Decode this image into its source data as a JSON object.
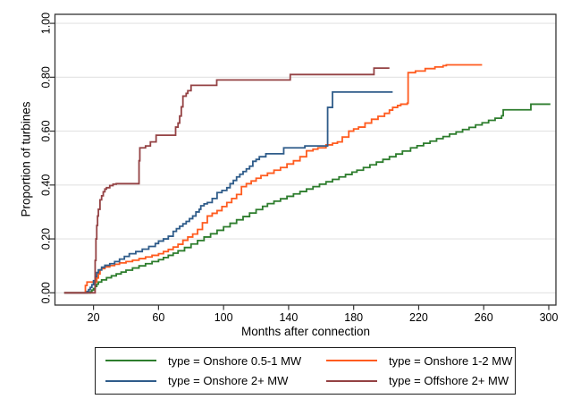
{
  "figure": {
    "background": "#ffffff",
    "plot_border_color": "#333333",
    "gridline_color": "#e3e3e3",
    "tick_color": "#333333",
    "text_color": "#000000"
  },
  "chart_data": {
    "type": "line",
    "step": true,
    "title": "",
    "xlabel": "Months after connection",
    "ylabel": "Proportion of turbines",
    "xlim": [
      -3.7,
      304.4
    ],
    "ylim": [
      -0.0455,
      1.0335
    ],
    "x_ticks": [
      20,
      60,
      100,
      140,
      180,
      220,
      260,
      300
    ],
    "x_tick_labels": [
      "20",
      "60",
      "100",
      "140",
      "180",
      "220",
      "260",
      "300"
    ],
    "y_ticks": [
      0.0,
      0.2,
      0.4,
      0.6,
      0.8,
      1.0
    ],
    "y_tick_labels": [
      "0.00",
      "0.20",
      "0.40",
      "0.60",
      "0.80",
      "1.00"
    ],
    "grid": "horizontal",
    "legend_position": "bottom",
    "series": [
      {
        "name": "type = Onshore 0.5-1 MW",
        "color": "#2d7d2d",
        "points": [
          [
            2,
            0
          ],
          [
            17,
            0
          ],
          [
            18,
            0.004
          ],
          [
            19,
            0.01
          ],
          [
            20,
            0.016
          ],
          [
            21,
            0.024
          ],
          [
            22,
            0.032
          ],
          [
            23,
            0.04
          ],
          [
            25,
            0.048
          ],
          [
            28,
            0.056
          ],
          [
            31,
            0.063
          ],
          [
            34,
            0.07
          ],
          [
            37,
            0.077
          ],
          [
            40,
            0.084
          ],
          [
            44,
            0.092
          ],
          [
            48,
            0.1
          ],
          [
            52,
            0.108
          ],
          [
            56,
            0.116
          ],
          [
            60,
            0.123
          ],
          [
            63,
            0.131
          ],
          [
            66,
            0.139
          ],
          [
            69,
            0.147
          ],
          [
            72,
            0.156
          ],
          [
            76,
            0.168
          ],
          [
            80,
            0.181
          ],
          [
            84,
            0.194
          ],
          [
            88,
            0.207
          ],
          [
            92,
            0.219
          ],
          [
            96,
            0.232
          ],
          [
            100,
            0.245
          ],
          [
            104,
            0.258
          ],
          [
            108,
            0.271
          ],
          [
            112,
            0.283
          ],
          [
            116,
            0.296
          ],
          [
            120,
            0.309
          ],
          [
            124,
            0.321
          ],
          [
            127,
            0.331
          ],
          [
            131,
            0.34
          ],
          [
            135,
            0.349
          ],
          [
            139,
            0.358
          ],
          [
            143,
            0.367
          ],
          [
            147,
            0.376
          ],
          [
            151,
            0.385
          ],
          [
            155,
            0.394
          ],
          [
            159,
            0.403
          ],
          [
            163,
            0.412
          ],
          [
            167,
            0.421
          ],
          [
            171,
            0.43
          ],
          [
            175,
            0.439
          ],
          [
            179,
            0.448
          ],
          [
            182,
            0.455
          ],
          [
            186,
            0.465
          ],
          [
            190,
            0.475
          ],
          [
            194,
            0.485
          ],
          [
            198,
            0.495
          ],
          [
            202,
            0.505
          ],
          [
            206,
            0.515
          ],
          [
            210,
            0.526
          ],
          [
            215,
            0.538
          ],
          [
            219,
            0.546
          ],
          [
            223,
            0.555
          ],
          [
            227,
            0.563
          ],
          [
            231,
            0.572
          ],
          [
            235,
            0.58
          ],
          [
            239,
            0.589
          ],
          [
            243,
            0.597
          ],
          [
            247,
            0.606
          ],
          [
            251,
            0.614
          ],
          [
            255,
            0.623
          ],
          [
            259,
            0.631
          ],
          [
            263,
            0.64
          ],
          [
            267,
            0.648
          ],
          [
            271,
            0.657
          ],
          [
            272,
            0.679
          ],
          [
            289,
            0.7
          ],
          [
            301,
            0.7
          ]
        ]
      },
      {
        "name": "type = Onshore 1-2 MW",
        "color": "#ff5b1f",
        "points": [
          [
            2,
            0
          ],
          [
            14,
            0
          ],
          [
            15,
            0.027
          ],
          [
            16,
            0.04
          ],
          [
            21,
            0.04
          ],
          [
            22,
            0.055
          ],
          [
            23,
            0.07
          ],
          [
            24,
            0.085
          ],
          [
            25,
            0.09
          ],
          [
            27,
            0.096
          ],
          [
            30,
            0.101
          ],
          [
            33,
            0.106
          ],
          [
            36,
            0.111
          ],
          [
            40,
            0.116
          ],
          [
            44,
            0.121
          ],
          [
            48,
            0.127
          ],
          [
            52,
            0.133
          ],
          [
            56,
            0.139
          ],
          [
            60,
            0.145
          ],
          [
            63,
            0.153
          ],
          [
            66,
            0.161
          ],
          [
            69,
            0.17
          ],
          [
            72,
            0.18
          ],
          [
            75,
            0.195
          ],
          [
            78,
            0.207
          ],
          [
            81,
            0.218
          ],
          [
            84,
            0.235
          ],
          [
            87,
            0.26
          ],
          [
            90,
            0.285
          ],
          [
            93,
            0.295
          ],
          [
            96,
            0.305
          ],
          [
            99,
            0.32
          ],
          [
            102,
            0.335
          ],
          [
            105,
            0.35
          ],
          [
            108,
            0.365
          ],
          [
            111,
            0.394
          ],
          [
            114,
            0.405
          ],
          [
            117,
            0.415
          ],
          [
            120,
            0.425
          ],
          [
            123,
            0.435
          ],
          [
            127,
            0.444
          ],
          [
            131,
            0.455
          ],
          [
            135,
            0.465
          ],
          [
            139,
            0.478
          ],
          [
            143,
            0.49
          ],
          [
            147,
            0.505
          ],
          [
            151,
            0.527
          ],
          [
            155,
            0.533
          ],
          [
            158,
            0.538
          ],
          [
            163,
            0.549
          ],
          [
            167,
            0.555
          ],
          [
            170,
            0.56
          ],
          [
            173,
            0.578
          ],
          [
            177,
            0.6
          ],
          [
            180,
            0.608
          ],
          [
            183,
            0.615
          ],
          [
            187,
            0.63
          ],
          [
            191,
            0.644
          ],
          [
            195,
            0.655
          ],
          [
            199,
            0.666
          ],
          [
            202,
            0.678
          ],
          [
            204,
            0.688
          ],
          [
            207,
            0.695
          ],
          [
            209,
            0.7
          ],
          [
            213,
            0.704
          ],
          [
            213.5,
            0.817
          ],
          [
            218,
            0.823
          ],
          [
            224,
            0.832
          ],
          [
            230,
            0.838
          ],
          [
            235,
            0.843
          ],
          [
            237,
            0.846
          ],
          [
            259,
            0.846
          ]
        ]
      },
      {
        "name": "type = Onshore 2+ MW",
        "color": "#2f5c8a",
        "points": [
          [
            2,
            0
          ],
          [
            15,
            0
          ],
          [
            16,
            0.005
          ],
          [
            17,
            0.012
          ],
          [
            18,
            0.02
          ],
          [
            19,
            0.03
          ],
          [
            20,
            0.045
          ],
          [
            21,
            0.06
          ],
          [
            22,
            0.075
          ],
          [
            23,
            0.085
          ],
          [
            25,
            0.095
          ],
          [
            27,
            0.102
          ],
          [
            30,
            0.108
          ],
          [
            33,
            0.116
          ],
          [
            36,
            0.125
          ],
          [
            39,
            0.135
          ],
          [
            42,
            0.145
          ],
          [
            46,
            0.153
          ],
          [
            50,
            0.162
          ],
          [
            54,
            0.172
          ],
          [
            58,
            0.183
          ],
          [
            60,
            0.192
          ],
          [
            63,
            0.2
          ],
          [
            66,
            0.21
          ],
          [
            69,
            0.228
          ],
          [
            71,
            0.238
          ],
          [
            73,
            0.247
          ],
          [
            75,
            0.256
          ],
          [
            77,
            0.265
          ],
          [
            79,
            0.275
          ],
          [
            81,
            0.285
          ],
          [
            83,
            0.3
          ],
          [
            85,
            0.31
          ],
          [
            86,
            0.323
          ],
          [
            88,
            0.33
          ],
          [
            90,
            0.335
          ],
          [
            93,
            0.35
          ],
          [
            96,
            0.372
          ],
          [
            99,
            0.38
          ],
          [
            102,
            0.39
          ],
          [
            104,
            0.405
          ],
          [
            106,
            0.417
          ],
          [
            108,
            0.43
          ],
          [
            110,
            0.44
          ],
          [
            112,
            0.45
          ],
          [
            114,
            0.46
          ],
          [
            116,
            0.47
          ],
          [
            118,
            0.488
          ],
          [
            120,
            0.495
          ],
          [
            122,
            0.505
          ],
          [
            126,
            0.516
          ],
          [
            137,
            0.538
          ],
          [
            150,
            0.545
          ],
          [
            163.5,
            0.545
          ],
          [
            164,
            0.688
          ],
          [
            167,
            0.745
          ],
          [
            204,
            0.745
          ]
        ]
      },
      {
        "name": "type = Offshore 2+ MW",
        "color": "#944244",
        "points": [
          [
            2,
            0
          ],
          [
            20.5,
            0
          ],
          [
            21,
            0.12
          ],
          [
            21.5,
            0.2
          ],
          [
            22,
            0.25
          ],
          [
            22.5,
            0.285
          ],
          [
            23,
            0.31
          ],
          [
            24,
            0.345
          ],
          [
            25,
            0.36
          ],
          [
            26,
            0.375
          ],
          [
            27,
            0.385
          ],
          [
            28,
            0.39
          ],
          [
            30,
            0.398
          ],
          [
            32,
            0.403
          ],
          [
            34,
            0.405
          ],
          [
            47.5,
            0.405
          ],
          [
            48,
            0.49
          ],
          [
            48.5,
            0.538
          ],
          [
            52,
            0.545
          ],
          [
            55,
            0.56
          ],
          [
            58.5,
            0.585
          ],
          [
            70.5,
            0.615
          ],
          [
            72,
            0.63
          ],
          [
            73,
            0.656
          ],
          [
            74,
            0.69
          ],
          [
            75,
            0.73
          ],
          [
            77,
            0.74
          ],
          [
            78,
            0.75
          ],
          [
            80,
            0.77
          ],
          [
            95.8,
            0.79
          ],
          [
            141,
            0.81
          ],
          [
            192.5,
            0.834
          ],
          [
            202,
            0.834
          ]
        ]
      }
    ]
  },
  "legend": {
    "order": [
      0,
      1,
      2,
      3
    ]
  }
}
